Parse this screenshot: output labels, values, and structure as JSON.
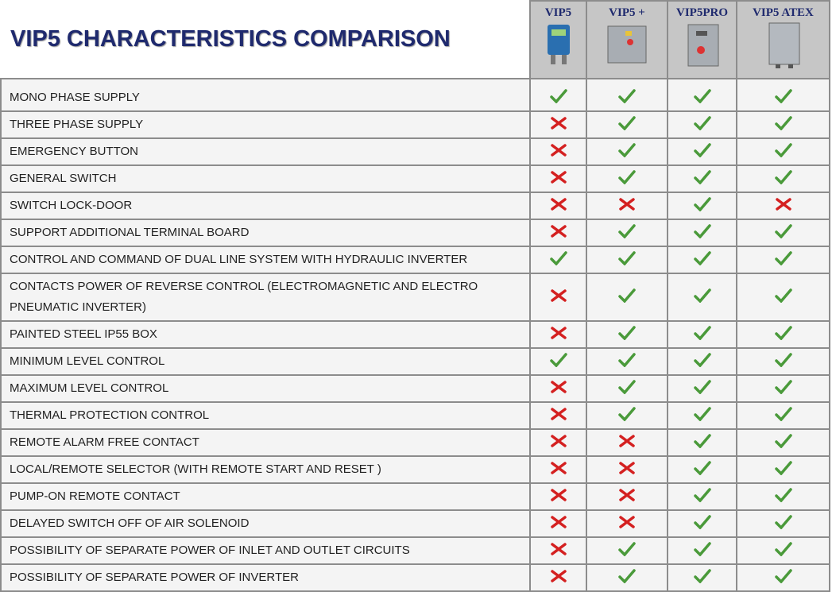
{
  "header": {
    "title": "VIP5 CHARACTERISTICS COMPARISON",
    "models": [
      "VIP5",
      "VIP5 +",
      "VIP5PRO",
      "VIP5 ATEX"
    ]
  },
  "table": {
    "rows": [
      {
        "feature": "MONO PHASE SUPPLY",
        "support": [
          true,
          true,
          true,
          true
        ]
      },
      {
        "feature": "THREE PHASE SUPPLY",
        "support": [
          false,
          true,
          true,
          true
        ]
      },
      {
        "feature": "EMERGENCY BUTTON",
        "support": [
          false,
          true,
          true,
          true
        ]
      },
      {
        "feature": "GENERAL SWITCH",
        "support": [
          false,
          true,
          true,
          true
        ]
      },
      {
        "feature": "SWITCH LOCK-DOOR",
        "support": [
          false,
          false,
          true,
          false
        ]
      },
      {
        "feature": "SUPPORT ADDITIONAL TERMINAL BOARD",
        "support": [
          false,
          true,
          true,
          true
        ]
      },
      {
        "feature": "CONTROL AND COMMAND OF DUAL LINE SYSTEM WITH HYDRAULIC  INVERTER",
        "support": [
          true,
          true,
          true,
          true
        ]
      },
      {
        "feature": "CONTACTS POWER OF REVERSE CONTROL  (ELECTROMAGNETIC AND ELECTRO PNEUMATIC INVERTER)",
        "support": [
          false,
          true,
          true,
          true
        ]
      },
      {
        "feature": "PAINTED STEEL IP55 BOX",
        "support": [
          false,
          true,
          true,
          true
        ]
      },
      {
        "feature": "MINIMUM LEVEL CONTROL",
        "support": [
          true,
          true,
          true,
          true
        ]
      },
      {
        "feature": "MAXIMUM LEVEL CONTROL",
        "support": [
          false,
          true,
          true,
          true
        ]
      },
      {
        "feature": "THERMAL PROTECTION CONTROL",
        "support": [
          false,
          true,
          true,
          true
        ]
      },
      {
        "feature": "REMOTE ALARM FREE CONTACT",
        "support": [
          false,
          false,
          true,
          true
        ]
      },
      {
        "feature": "LOCAL/REMOTE SELECTOR  (WITH  REMOTE START AND  RESET )",
        "support": [
          false,
          false,
          true,
          true
        ]
      },
      {
        "feature": "PUMP-ON REMOTE CONTACT",
        "support": [
          false,
          false,
          true,
          true
        ]
      },
      {
        "feature": "DELAYED SWITCH OFF OF AIR SOLENOID",
        "support": [
          false,
          false,
          true,
          true
        ]
      },
      {
        "feature": "POSSIBILITY OF SEPARATE POWER  OF INLET AND OUTLET CIRCUITS",
        "support": [
          false,
          true,
          true,
          true
        ]
      },
      {
        "feature": "POSSIBILITY OF SEPARATE POWER OF INVERTER",
        "support": [
          false,
          true,
          true,
          true
        ]
      }
    ]
  }
}
